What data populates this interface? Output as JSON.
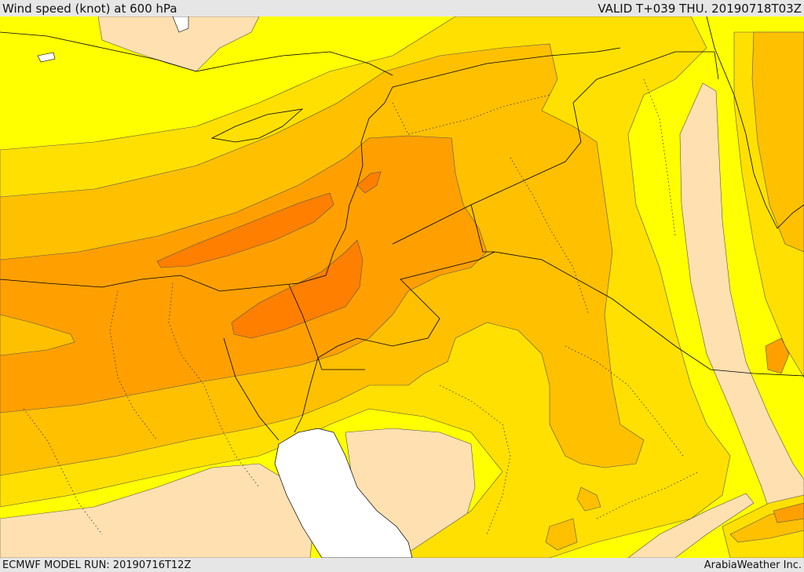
{
  "header": {
    "title": "Wind speed (knot) at 600 hPa",
    "valid": "VALID T+039 THU. 20190718T03Z"
  },
  "footer": {
    "model_run": "ECMWF MODEL RUN: 20190716T12Z",
    "provider": "ArabiaWeather Inc."
  },
  "map": {
    "field": "wind-speed",
    "palette": {
      "band_0": "#ffe0b0",
      "band_1": "#ffff00",
      "band_2": "#ffe000",
      "band_3": "#ffc000",
      "band_4": "#ffa000",
      "band_5": "#ff7f00",
      "sea_white": "#ffffff",
      "border": "#000000"
    }
  }
}
